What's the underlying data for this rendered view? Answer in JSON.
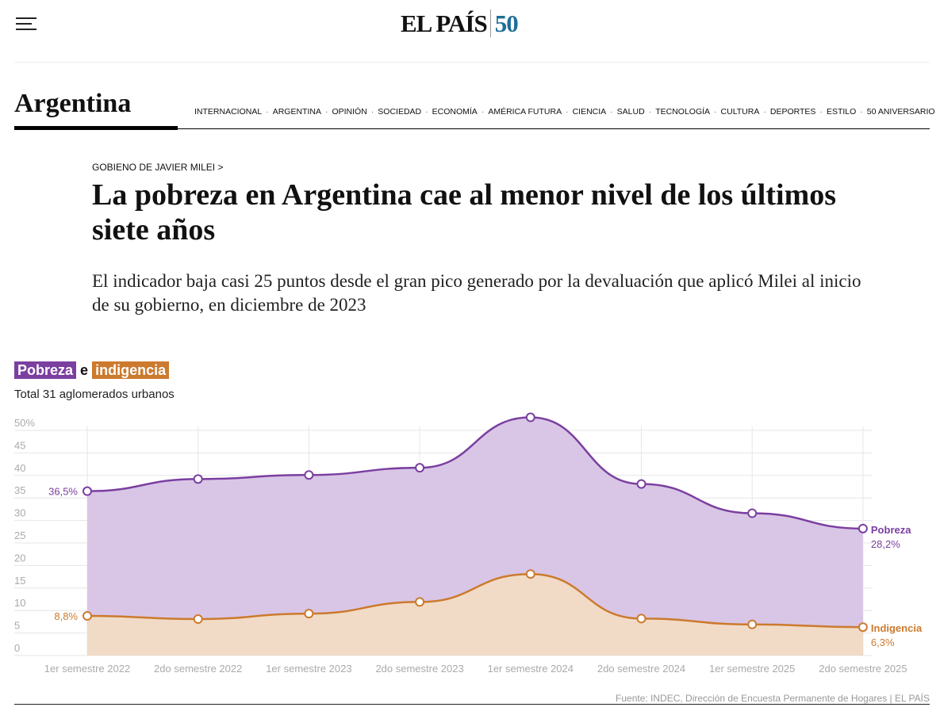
{
  "header": {
    "logo": "EL PAÍS",
    "logo_badge": "50"
  },
  "section": {
    "title": "Argentina",
    "nav": [
      "INTERNACIONAL",
      "ARGENTINA",
      "OPINIÓN",
      "SOCIEDAD",
      "ECONOMÍA",
      "AMÉRICA FUTURA",
      "CIENCIA",
      "SALUD",
      "TECNOLOGÍA",
      "CULTURA",
      "DEPORTES",
      "ESTILO",
      "50 ANIVERSARIO"
    ]
  },
  "article": {
    "kicker": "GOBIENO DE JAVIER MILEI",
    "kicker_arrow": ">",
    "title": "La pobreza en Argentina cae al menor nivel de los últimos siete años",
    "subtitle": "El indicador baja casi 25 puntos desde el gran pico generado por la devaluación que aplicó Milei al inicio de su gobierno, en diciembre de 2023"
  },
  "chart_data": {
    "type": "area",
    "title_parts": [
      "Pobreza",
      "e",
      "indigencia"
    ],
    "subtitle": "Total 31 aglomerados urbanos",
    "categories": [
      "1er semestre 2022",
      "2do semestre 2022",
      "1er semestre 2023",
      "2do semestre 2023",
      "1er semestre 2024",
      "2do semestre 2024",
      "1er semestre 2025",
      "2do semestre 2025"
    ],
    "yticks": [
      "0",
      "5",
      "10",
      "15",
      "20",
      "25",
      "30",
      "35",
      "40",
      "45",
      "50%"
    ],
    "ylim": [
      0,
      50
    ],
    "grid": true,
    "series": [
      {
        "name": "Pobreza",
        "color": "#7b3fa0",
        "fill": "#d9c6e6",
        "values": [
          36.5,
          39.2,
          40.1,
          41.7,
          52.9,
          38.1,
          31.6,
          28.2
        ],
        "start_label": "36,5%",
        "end_label": "28,2%"
      },
      {
        "name": "Indigencia",
        "color": "#cc7a2e",
        "fill": "#f2dcc4",
        "values": [
          8.8,
          8.1,
          9.3,
          11.9,
          18.1,
          8.2,
          6.9,
          6.3
        ],
        "start_label": "8,8%",
        "end_label": "6,3%"
      }
    ],
    "source": "Fuente: INDEC, Dirección de Encuesta Permanente de Hogares | EL PAÍS"
  }
}
